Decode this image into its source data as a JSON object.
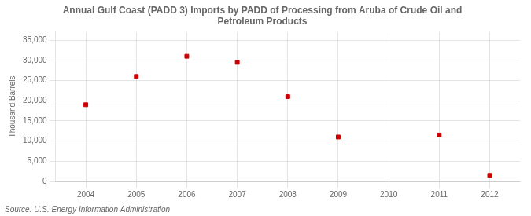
{
  "chart_data": {
    "type": "scatter",
    "title": "Annual Gulf Coast (PADD 3) Imports by PADD of Processing from Aruba of Crude Oil and\nPetroleum Products",
    "ylabel": "Thousand Barrels",
    "annotations": [
      "Source: U.S. Energy Information Administration"
    ],
    "x": [
      2004,
      2005,
      2006,
      2007,
      2008,
      2009,
      2011,
      2012
    ],
    "values": [
      19000,
      26000,
      31000,
      29500,
      21000,
      11000,
      11500,
      1500
    ],
    "color": "#cc0000",
    "marker": "square",
    "xlim": [
      2003.4,
      2012.6
    ],
    "ylim": [
      0,
      37000
    ],
    "xticks": [
      2004,
      2005,
      2006,
      2007,
      2008,
      2009,
      2010,
      2011,
      2012
    ],
    "yticks": [
      0,
      {
        "value": 5000,
        "label": "5,000"
      },
      {
        "value": 10000,
        "label": "10,000"
      },
      {
        "value": 15000,
        "label": "15,000"
      },
      {
        "value": 20000,
        "label": "20,000"
      },
      {
        "value": 25000,
        "label": "25,000"
      },
      {
        "value": 30000,
        "label": "30,000"
      },
      {
        "value": 35000,
        "label": "35,000"
      }
    ],
    "grid": true
  }
}
